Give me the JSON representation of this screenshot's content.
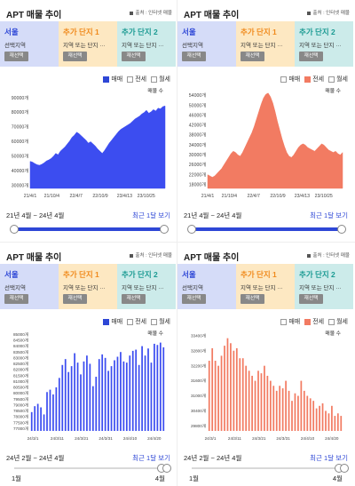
{
  "panels": [
    {
      "title": "APT 매물 추이",
      "source": "출처 : 인터넷 매물",
      "cards": [
        {
          "name": "서울",
          "sub": "선택지역",
          "btn": "재선택"
        },
        {
          "name": "추가 단지 1",
          "sub": "지역 또는 단지 ···",
          "btn": "재선택"
        },
        {
          "name": "추가 단지 2",
          "sub": "지역 또는 단지 ···",
          "btn": "재선택"
        }
      ],
      "legend": [
        {
          "label": "매매",
          "checked": true
        },
        {
          "label": "전세",
          "checked": false
        },
        {
          "label": "월세",
          "checked": false
        }
      ],
      "range_text": "21년 4월 ~ 24년 4월",
      "show_text": "최근 1달 보기",
      "slider": {
        "style": "full",
        "left_label": "",
        "right_label": ""
      },
      "accent": "#2e47d6"
    },
    {
      "title": "APT 매물 추이",
      "source": "출처 : 인터넷 매물",
      "cards": [
        {
          "name": "서울",
          "sub": "선택지역",
          "btn": "재선택"
        },
        {
          "name": "추가 단지 1",
          "sub": "지역 또는 단지 ···",
          "btn": "재선택"
        },
        {
          "name": "추가 단지 2",
          "sub": "지역 또는 단지 ···",
          "btn": "재선택"
        }
      ],
      "legend": [
        {
          "label": "매매",
          "checked": false
        },
        {
          "label": "전세",
          "checked": true
        },
        {
          "label": "월세",
          "checked": false
        }
      ],
      "range_text": "21년 4월 ~ 24년 4월",
      "show_text": "최근 1달 보기",
      "slider": {
        "style": "full",
        "left_label": "",
        "right_label": ""
      },
      "accent": "#f27b62"
    },
    {
      "title": "APT 매물 추이",
      "source": "출처 : 인터넷 매물",
      "cards": [
        {
          "name": "서울",
          "sub": "선택지역",
          "btn": "재선택"
        },
        {
          "name": "추가 단지 1",
          "sub": "지역 또는 단지 ···",
          "btn": "재선택"
        },
        {
          "name": "추가 단지 2",
          "sub": "지역 또는 단지 ···",
          "btn": "재선택"
        }
      ],
      "legend": [
        {
          "label": "매매",
          "checked": true
        },
        {
          "label": "전세",
          "checked": false
        },
        {
          "label": "월세",
          "checked": false
        }
      ],
      "range_text": "24년 2월 ~ 24년 4월",
      "show_text": "최근 1달 보기",
      "slider": {
        "style": "month",
        "left_label": "1월",
        "right_label": "4월"
      },
      "accent": "#2e47d6"
    },
    {
      "title": "APT 매물 추이",
      "source": "출처 : 인터넷 매물",
      "cards": [
        {
          "name": "서울",
          "sub": "선택지역",
          "btn": "재선택"
        },
        {
          "name": "추가 단지 1",
          "sub": "지역 또는 단지 ···",
          "btn": "재선택"
        },
        {
          "name": "추가 단지 2",
          "sub": "지역 또는 단지 ···",
          "btn": "재선택"
        }
      ],
      "legend": [
        {
          "label": "매매",
          "checked": false
        },
        {
          "label": "전세",
          "checked": true
        },
        {
          "label": "월세",
          "checked": false
        }
      ],
      "range_text": "24년 2월 ~ 24년 4월",
      "show_text": "최근 1달 보기",
      "slider": {
        "style": "month",
        "left_label": "1월",
        "right_label": "4월"
      },
      "accent": "#f27b62"
    }
  ],
  "chart_data": [
    {
      "type": "area",
      "series_label": "매물 수",
      "color": "#3c4df0",
      "x_ticks": [
        "21/4/1",
        "21/10/4",
        "22/4/7",
        "22/10/9",
        "23/4/13",
        "23/10/25"
      ],
      "y_ticks": [
        "30000개",
        "40000개",
        "50000개",
        "60000개",
        "70000개",
        "80000개",
        "90000개"
      ],
      "ylim": [
        28000,
        95000
      ],
      "values": [
        46500,
        46000,
        45000,
        44200,
        43800,
        44500,
        45500,
        46800,
        47500,
        48500,
        50000,
        52000,
        51000,
        53500,
        55000,
        56500,
        58500,
        60500,
        63000,
        64500,
        66500,
        65500,
        64000,
        62500,
        61000,
        59000,
        60000,
        58500,
        57000,
        55000,
        53500,
        52000,
        54000,
        56500,
        59000,
        61000,
        63000,
        65000,
        67000,
        68500,
        69500,
        70500,
        71500,
        72500,
        74000,
        75500,
        76500,
        77500,
        79000,
        80000,
        81500,
        79500,
        80500,
        82000,
        81000,
        83000,
        82500,
        84000,
        84500
      ]
    },
    {
      "type": "area",
      "series_label": "매물 수",
      "color": "#f27b62",
      "x_ticks": [
        "21/4/1",
        "21/10/4",
        "22/4/7",
        "22/10/9",
        "23/4/13",
        "23/10/25"
      ],
      "y_ticks": [
        "18000개",
        "22000개",
        "26000개",
        "30000개",
        "34000개",
        "38000개",
        "42000개",
        "46000개",
        "50000개",
        "54000개"
      ],
      "ylim": [
        16500,
        56000
      ],
      "values": [
        22000,
        21500,
        21000,
        21500,
        22500,
        23500,
        24500,
        26000,
        27500,
        29000,
        30500,
        31500,
        31000,
        30000,
        29500,
        31000,
        33000,
        35000,
        37000,
        39000,
        41500,
        44500,
        47500,
        50500,
        53000,
        54500,
        55000,
        53500,
        51000,
        47500,
        43500,
        40000,
        36500,
        33500,
        31000,
        29500,
        29000,
        30000,
        31500,
        33000,
        34000,
        34500,
        34000,
        33000,
        32500,
        32000,
        31500,
        32500,
        33500,
        34500,
        34000,
        33000,
        32000,
        31500,
        31000,
        31500,
        30500,
        30000,
        31000
      ]
    },
    {
      "type": "bar",
      "series_label": "매물 수",
      "color": "#3c4df0",
      "x_ticks": [
        "24/3/1",
        "24/3/11",
        "24/3/21",
        "24/3/31",
        "24/4/10",
        "24/4/20"
      ],
      "y_ticks": [
        "77000개",
        "77500개",
        "78000개",
        "78500개",
        "79000개",
        "79500개",
        "80000개",
        "80500개",
        "81000개",
        "81500개",
        "82000개",
        "82500개",
        "83000개",
        "83500개",
        "84000개",
        "84500개",
        "85000개"
      ],
      "ylim": [
        76800,
        85100
      ],
      "values": [
        78400,
        78900,
        79100,
        78800,
        78200,
        80100,
        80300,
        79900,
        80500,
        81300,
        82400,
        82900,
        81800,
        82300,
        83400,
        82600,
        81600,
        82700,
        83200,
        82500,
        80600,
        81400,
        82900,
        83300,
        83000,
        81900,
        82300,
        82800,
        83100,
        83500,
        82700,
        82600,
        83200,
        83600,
        83700,
        82400,
        84000,
        83200,
        83800,
        82600,
        84200,
        84100,
        84300,
        83900
      ]
    },
    {
      "type": "bar",
      "series_label": "매물 수",
      "color": "#f27b62",
      "x_ticks": [
        "24/3/1",
        "24/3/11",
        "24/3/21",
        "24/3/31",
        "24/4/10",
        "24/4/20"
      ],
      "y_ticks": [
        "29800개",
        "30400개",
        "31000개",
        "31600개",
        "32200개",
        "32800개",
        "33400개"
      ],
      "ylim": [
        29600,
        33500
      ],
      "values": [
        32400,
        32900,
        32400,
        32200,
        32600,
        33000,
        33300,
        33100,
        32800,
        32900,
        32500,
        32500,
        32200,
        32000,
        31800,
        31600,
        32000,
        31900,
        32200,
        31800,
        31600,
        31400,
        31200,
        31400,
        31300,
        31600,
        31200,
        30800,
        31100,
        31000,
        31600,
        31200,
        31000,
        30900,
        30800,
        30500,
        30600,
        30700,
        30400,
        30300,
        30600,
        30200,
        30300,
        30200
      ]
    }
  ]
}
